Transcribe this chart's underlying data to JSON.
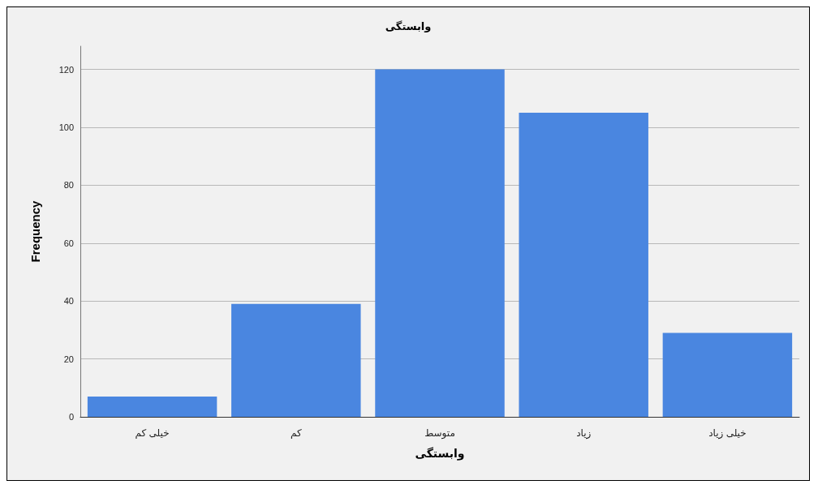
{
  "chart_data": {
    "type": "bar",
    "title": "وابستگی",
    "xlabel": "وابستگی",
    "ylabel": "Frequency",
    "categories": [
      "خیلی کم",
      "کم",
      "متوسط",
      "زیاد",
      "خیلی زیاد"
    ],
    "values": [
      7,
      39,
      120,
      105,
      29
    ],
    "color": "#4a86e0",
    "ylim": [
      0,
      128
    ],
    "yticks": [
      0,
      20,
      40,
      60,
      80,
      100,
      120
    ],
    "grid": "y"
  }
}
